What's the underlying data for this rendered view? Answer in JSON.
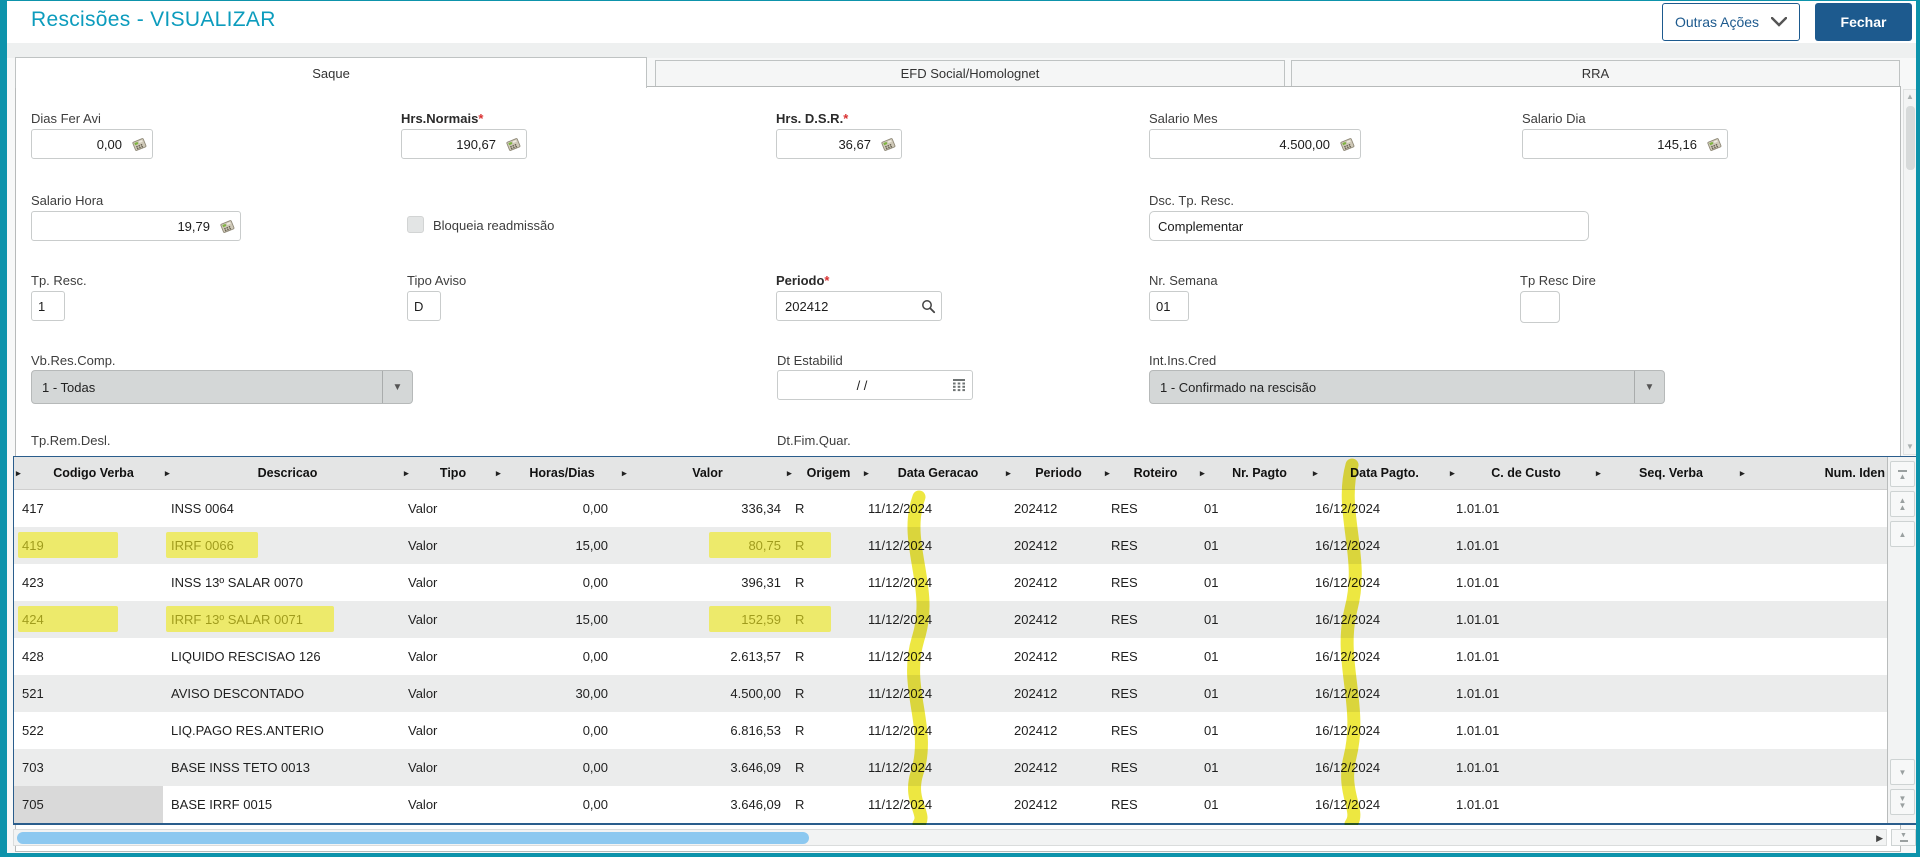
{
  "header": {
    "title": "Rescisões - VISUALIZAR",
    "other_actions_label": "Outras Ações",
    "close_label": "Fechar"
  },
  "tabs": [
    {
      "label": "Saque",
      "active": true
    },
    {
      "label": "EFD Social/Homolognet",
      "active": false
    },
    {
      "label": "RRA",
      "active": false
    }
  ],
  "form": {
    "dias_fer_avi": {
      "label": "Dias Fer Avi",
      "value": "0,00"
    },
    "hrs_normais": {
      "label": "Hrs.Normais",
      "value": "190,67",
      "required": true
    },
    "hrs_dsr": {
      "label": "Hrs. D.S.R.",
      "value": "36,67",
      "required": true
    },
    "salario_mes": {
      "label": "Salario Mes",
      "value": "4.500,00"
    },
    "salario_dia": {
      "label": "Salario Dia",
      "value": "145,16"
    },
    "salario_hora": {
      "label": "Salario Hora",
      "value": "19,79"
    },
    "bloqueia_readmissao": {
      "label": "Bloqueia readmissão",
      "checked": false
    },
    "dsc_tp_resc": {
      "label": "Dsc. Tp. Resc.",
      "value": "Complementar"
    },
    "tp_resc": {
      "label": "Tp. Resc.",
      "value": "1"
    },
    "tipo_aviso": {
      "label": "Tipo Aviso",
      "value": "D"
    },
    "periodo": {
      "label": "Periodo",
      "value": "202412",
      "required": true
    },
    "nr_semana": {
      "label": "Nr. Semana",
      "value": "01"
    },
    "tp_resc_dire": {
      "label": "Tp Resc Dire",
      "value": ""
    },
    "vb_res_comp": {
      "label": "Vb.Res.Comp.",
      "value": "1 - Todas"
    },
    "dt_estabilid": {
      "label": "Dt Estabilid",
      "value": "/  /"
    },
    "int_ins_cred": {
      "label": "Int.Ins.Cred",
      "value": "1 - Confirmado na rescisão"
    },
    "tp_rem_desl": {
      "label": "Tp.Rem.Desl."
    },
    "dt_fim_quar": {
      "label": "Dt.Fim.Quar."
    }
  },
  "grid": {
    "columns": [
      "Codigo Verba",
      "Descricao",
      "Tipo",
      "Horas/Dias",
      "Valor",
      "Origem",
      "Data Geracao",
      "Periodo",
      "Roteiro",
      "Nr. Pagto",
      "Data Pagto.",
      "C. de Custo",
      "Seq. Verba",
      "Num. Iden"
    ],
    "rows": [
      {
        "codigo": "417",
        "descricao": "INSS 0064",
        "tipo": "Valor",
        "horas_dias": "0,00",
        "valor": "336,34",
        "origem": "R",
        "data_geracao": "11/12/2024",
        "periodo": "202412",
        "roteiro": "RES",
        "nr_pagto": "01",
        "data_pagto": "16/12/2024",
        "c_de_custo": "1.01.01",
        "seq_verba": "",
        "num_iden": ""
      },
      {
        "codigo": "419",
        "descricao": "IRRF 0066",
        "tipo": "Valor",
        "horas_dias": "15,00",
        "valor": "80,75",
        "origem": "R",
        "data_geracao": "11/12/2024",
        "periodo": "202412",
        "roteiro": "RES",
        "nr_pagto": "01",
        "data_pagto": "16/12/2024",
        "c_de_custo": "1.01.01",
        "seq_verba": "",
        "num_iden": "",
        "highlight": true
      },
      {
        "codigo": "423",
        "descricao": "INSS 13º SALAR 0070",
        "tipo": "Valor",
        "horas_dias": "0,00",
        "valor": "396,31",
        "origem": "R",
        "data_geracao": "11/12/2024",
        "periodo": "202412",
        "roteiro": "RES",
        "nr_pagto": "01",
        "data_pagto": "16/12/2024",
        "c_de_custo": "1.01.01",
        "seq_verba": "",
        "num_iden": ""
      },
      {
        "codigo": "424",
        "descricao": "IRRF 13º SALAR 0071",
        "tipo": "Valor",
        "horas_dias": "15,00",
        "valor": "152,59",
        "origem": "R",
        "data_geracao": "11/12/2024",
        "periodo": "202412",
        "roteiro": "RES",
        "nr_pagto": "01",
        "data_pagto": "16/12/2024",
        "c_de_custo": "1.01.01",
        "seq_verba": "",
        "num_iden": "",
        "highlight": true
      },
      {
        "codigo": "428",
        "descricao": "LIQUIDO RESCISAO 126",
        "tipo": "Valor",
        "horas_dias": "0,00",
        "valor": "2.613,57",
        "origem": "R",
        "data_geracao": "11/12/2024",
        "periodo": "202412",
        "roteiro": "RES",
        "nr_pagto": "01",
        "data_pagto": "16/12/2024",
        "c_de_custo": "1.01.01",
        "seq_verba": "",
        "num_iden": ""
      },
      {
        "codigo": "521",
        "descricao": "AVISO DESCONTADO",
        "tipo": "Valor",
        "horas_dias": "30,00",
        "valor": "4.500,00",
        "origem": "R",
        "data_geracao": "11/12/2024",
        "periodo": "202412",
        "roteiro": "RES",
        "nr_pagto": "01",
        "data_pagto": "16/12/2024",
        "c_de_custo": "1.01.01",
        "seq_verba": "",
        "num_iden": ""
      },
      {
        "codigo": "522",
        "descricao": "LIQ.PAGO RES.ANTERIO",
        "tipo": "Valor",
        "horas_dias": "0,00",
        "valor": "6.816,53",
        "origem": "R",
        "data_geracao": "11/12/2024",
        "periodo": "202412",
        "roteiro": "RES",
        "nr_pagto": "01",
        "data_pagto": "16/12/2024",
        "c_de_custo": "1.01.01",
        "seq_verba": "",
        "num_iden": ""
      },
      {
        "codigo": "703",
        "descricao": "BASE INSS TETO 0013",
        "tipo": "Valor",
        "horas_dias": "0,00",
        "valor": "3.646,09",
        "origem": "R",
        "data_geracao": "11/12/2024",
        "periodo": "202412",
        "roteiro": "RES",
        "nr_pagto": "01",
        "data_pagto": "16/12/2024",
        "c_de_custo": "1.01.01",
        "seq_verba": "",
        "num_iden": ""
      },
      {
        "codigo": "705",
        "descricao": "BASE IRRF 0015",
        "tipo": "Valor",
        "horas_dias": "0,00",
        "valor": "3.646,09",
        "origem": "R",
        "data_geracao": "11/12/2024",
        "periodo": "202412",
        "roteiro": "RES",
        "nr_pagto": "01",
        "data_pagto": "16/12/2024",
        "c_de_custo": "1.01.01",
        "seq_verba": "",
        "num_iden": "",
        "selected_cell": "codigo"
      }
    ]
  },
  "annotations": {
    "highlighter_color": "#e8e00c",
    "marked_columns": [
      "Data Geracao",
      "Data Pagto."
    ]
  },
  "colors": {
    "accent_teal": "#0d93ab",
    "title_teal": "#0c9cbd",
    "button_blue": "#1d5a8e",
    "grid_border_blue": "#2a5d8c",
    "highlight_yellow": "#efe81c",
    "scroll_thumb_blue": "#8cc8f0"
  }
}
